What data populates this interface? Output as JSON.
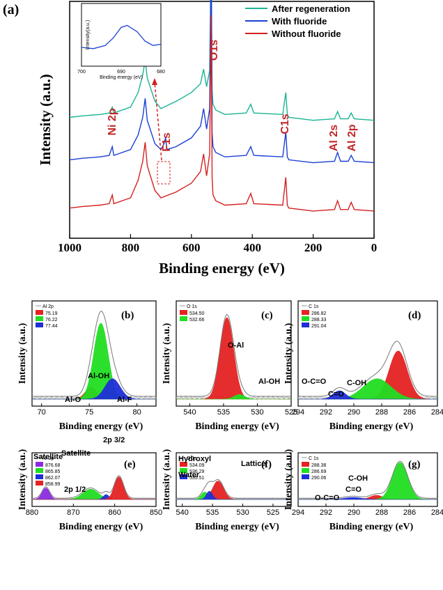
{
  "chart_data": [
    {
      "id": "a",
      "type": "line",
      "panel_label": "(a)",
      "xlabel": "Binding energy (eV)",
      "ylabel": "Intensity (a.u.)",
      "xlim": [
        1000,
        0
      ],
      "x_ticks": [
        1000,
        800,
        600,
        400,
        200,
        0
      ],
      "legend": [
        "After regeneration",
        "With fluoride",
        "Without fluoride"
      ],
      "series": [
        {
          "name": "After regeneration",
          "color": "#1ab394",
          "offset": 0.62,
          "x": [
            1000,
            960,
            900,
            870,
            860,
            855,
            800,
            775,
            760,
            752,
            745,
            720,
            700,
            650,
            600,
            570,
            560,
            550,
            540,
            535,
            532,
            529,
            520,
            490,
            420,
            405,
            395,
            300,
            290,
            285,
            280,
            200,
            130,
            120,
            110,
            85,
            75,
            65,
            0
          ],
          "y": [
            0.03,
            0.04,
            0.05,
            0.06,
            0.1,
            0.06,
            0.1,
            0.2,
            0.32,
            0.42,
            0.3,
            0.14,
            0.09,
            0.14,
            0.2,
            0.26,
            0.36,
            0.24,
            0.35,
            1.1,
            0.22,
            0.12,
            0.08,
            0.05,
            0.06,
            0.12,
            0.06,
            0.05,
            0.2,
            0.05,
            0.03,
            0.01,
            0.02,
            0.07,
            0.02,
            0.02,
            0.06,
            0.02,
            0.01
          ]
        },
        {
          "name": "With fluoride",
          "color": "#1a3fd6",
          "offset": 0.33,
          "x": [
            1000,
            960,
            900,
            870,
            860,
            855,
            800,
            775,
            760,
            752,
            745,
            720,
            700,
            690,
            685,
            680,
            650,
            600,
            570,
            560,
            550,
            540,
            535,
            532,
            529,
            520,
            490,
            420,
            405,
            395,
            300,
            290,
            285,
            280,
            200,
            130,
            120,
            110,
            85,
            75,
            65,
            0
          ],
          "y": [
            0.03,
            0.04,
            0.05,
            0.06,
            0.12,
            0.06,
            0.1,
            0.2,
            0.32,
            0.45,
            0.3,
            0.14,
            0.1,
            0.14,
            0.18,
            0.1,
            0.12,
            0.18,
            0.26,
            0.38,
            0.24,
            0.38,
            1.5,
            0.22,
            0.12,
            0.08,
            0.05,
            0.06,
            0.12,
            0.06,
            0.05,
            0.22,
            0.05,
            0.03,
            0.01,
            0.02,
            0.08,
            0.02,
            0.02,
            0.06,
            0.02,
            0.01
          ]
        },
        {
          "name": "Without fluoride",
          "color": "#d42020",
          "offset": 0.0,
          "x": [
            1000,
            960,
            900,
            870,
            860,
            855,
            800,
            775,
            760,
            752,
            745,
            720,
            700,
            650,
            600,
            570,
            560,
            550,
            540,
            535,
            532,
            529,
            520,
            490,
            420,
            405,
            395,
            300,
            290,
            285,
            280,
            200,
            130,
            120,
            110,
            85,
            75,
            65,
            0
          ],
          "y": [
            0.03,
            0.04,
            0.05,
            0.06,
            0.12,
            0.06,
            0.1,
            0.22,
            0.35,
            0.48,
            0.32,
            0.15,
            0.1,
            0.14,
            0.2,
            0.28,
            0.4,
            0.25,
            0.4,
            1.35,
            0.24,
            0.12,
            0.08,
            0.05,
            0.06,
            0.13,
            0.06,
            0.05,
            0.24,
            0.05,
            0.03,
            0.01,
            0.02,
            0.08,
            0.02,
            0.02,
            0.07,
            0.02,
            0.01
          ]
        }
      ],
      "peak_labels": [
        {
          "text": "Ni 2p",
          "x": 855,
          "color": "#c0282a"
        },
        {
          "text": "F1s",
          "x": 685,
          "color": "#c0282a"
        },
        {
          "text": "O1s",
          "x": 532,
          "color": "#c0282a"
        },
        {
          "text": "C1s",
          "x": 288,
          "color": "#c0282a"
        },
        {
          "text": "Al 2s",
          "x": 120,
          "color": "#c0282a"
        },
        {
          "text": "Al 2p",
          "x": 75,
          "color": "#c0282a"
        }
      ],
      "inset": {
        "xlim": [
          700,
          680
        ],
        "x_ticks": [
          700,
          690,
          680
        ],
        "xlabel": "Binding energy (eV)",
        "ylabel": "Intensity(a.u.)",
        "x": [
          700,
          697,
          694,
          692,
          690,
          688.5,
          686,
          684,
          682,
          680
        ],
        "y": [
          0.3,
          0.28,
          0.33,
          0.45,
          0.62,
          0.65,
          0.55,
          0.4,
          0.33,
          0.35
        ],
        "color": "#1a3fd6"
      }
    },
    {
      "id": "b",
      "type": "area",
      "panel_label": "(b)",
      "xlabel": "Binding energy (eV)",
      "ylabel": "Intensity (a.u.)",
      "xlim": [
        69,
        82
      ],
      "x_ticks": [
        70,
        75,
        80
      ],
      "legend_title": "Al 2p",
      "legend": [
        {
          "label": "75.19",
          "color": "#e52222"
        },
        {
          "label": "76.22",
          "color": "#22dd22"
        },
        {
          "label": "77.44",
          "color": "#1f2fd8"
        }
      ],
      "peaks": [
        {
          "name": "Al-O",
          "center": 75.19,
          "height": 0.13,
          "width": 0.6,
          "color": "#e52222"
        },
        {
          "name": "Al-OH",
          "center": 76.22,
          "height": 0.82,
          "width": 0.75,
          "color": "#22dd22"
        },
        {
          "name": "Al-F",
          "center": 77.44,
          "height": 0.22,
          "width": 0.8,
          "color": "#1f2fd8"
        }
      ],
      "annotations": [
        "Al-OH",
        "Al-O",
        "Al-F"
      ]
    },
    {
      "id": "c",
      "type": "area",
      "panel_label": "(c)",
      "xlabel": "Binding energy (eV)",
      "ylabel": "Intensity (a.u.)",
      "xlim": [
        542,
        525
      ],
      "x_ticks": [
        540,
        535,
        530,
        525
      ],
      "legend_title": "O 1s",
      "legend": [
        {
          "label": "534.50",
          "color": "#e52222"
        },
        {
          "label": "532.66",
          "color": "#22dd22"
        }
      ],
      "peaks": [
        {
          "name": "O-Al",
          "center": 534.5,
          "height": 0.88,
          "width": 1.0,
          "color": "#e52222"
        },
        {
          "name": "Al-OH",
          "center": 532.66,
          "height": 0.05,
          "width": 0.8,
          "color": "#22dd22"
        }
      ],
      "annotations": [
        "O-Al",
        "Al-OH"
      ]
    },
    {
      "id": "d",
      "type": "area",
      "panel_label": "(d)",
      "xlabel": "Binding energy (eV)",
      "ylabel": "Intensity (a.u.)",
      "xlim": [
        294,
        284
      ],
      "x_ticks": [
        294,
        292,
        290,
        288,
        286,
        284
      ],
      "legend_title": "C 1s",
      "legend": [
        {
          "label": "286.82",
          "color": "#e52222"
        },
        {
          "label": "288.33",
          "color": "#22dd22"
        },
        {
          "label": "291.04",
          "color": "#1f2fd8"
        }
      ],
      "peaks": [
        {
          "name": "C-OH",
          "center": 286.82,
          "height": 0.52,
          "width": 0.65,
          "color": "#e52222"
        },
        {
          "name": "C=O",
          "center": 288.33,
          "height": 0.22,
          "width": 1.0,
          "color": "#22dd22"
        },
        {
          "name": "O-C=O",
          "center": 291.04,
          "height": 0.09,
          "width": 0.45,
          "color": "#1f2fd8"
        }
      ],
      "annotations": [
        "C-OH",
        "C=O",
        "O-C=O"
      ]
    },
    {
      "id": "e",
      "type": "area",
      "panel_label": "(e)",
      "xlabel": "Binding energy (eV)",
      "ylabel": "Intensity (a.u.)",
      "xlim": [
        880,
        850
      ],
      "x_ticks": [
        880,
        870,
        860,
        850
      ],
      "legend_title": "Ni 2p",
      "legend": [
        {
          "label": "876.68",
          "color": "#8a2be2"
        },
        {
          "label": "865.85",
          "color": "#22dd22"
        },
        {
          "label": "862.07",
          "color": "#1f2fd8"
        },
        {
          "label": "858.99",
          "color": "#e52222"
        }
      ],
      "peaks": [
        {
          "name": "Satellite",
          "center": 876.68,
          "height": 0.28,
          "width": 0.9,
          "color": "#8a2be2"
        },
        {
          "name": "2p 1/2",
          "center": 865.85,
          "height": 0.25,
          "width": 1.9,
          "color": "#22dd22"
        },
        {
          "name": "Satellite",
          "center": 862.07,
          "height": 0.12,
          "width": 0.7,
          "color": "#1f2fd8"
        },
        {
          "name": "2p 3/2",
          "center": 858.99,
          "height": 0.55,
          "width": 1.1,
          "color": "#e52222"
        }
      ],
      "annotations": [
        "Satellite",
        "Satellite",
        "2p 1/2",
        "2p 3/2"
      ]
    },
    {
      "id": "f",
      "type": "area",
      "panel_label": "(f)",
      "xlabel": "Binding energy (eV)",
      "ylabel": "Intensity (a.u.)",
      "xlim": [
        541,
        522
      ],
      "x_ticks": [
        540,
        535,
        530,
        525
      ],
      "legend_title": "O 1s",
      "legend": [
        {
          "label": "534.09",
          "color": "#e52222"
        },
        {
          "label": "536.29",
          "color": "#22dd22"
        },
        {
          "label": "535.51",
          "color": "#1f2fd8"
        }
      ],
      "peaks": [
        {
          "name": "Lattice",
          "center": 534.09,
          "height": 0.45,
          "width": 0.9,
          "color": "#e52222"
        },
        {
          "name": "Water",
          "center": 536.29,
          "height": 0.18,
          "width": 0.6,
          "color": "#22dd22"
        },
        {
          "name": "Hydroxyl",
          "center": 535.51,
          "height": 0.2,
          "width": 0.5,
          "color": "#1f2fd8"
        }
      ],
      "annotations": [
        "Hydroxyl",
        "Water",
        "Lattice"
      ]
    },
    {
      "id": "g",
      "type": "area",
      "panel_label": "(g)",
      "xlabel": "Binding energy (eV)",
      "ylabel": "Intensity (a.u.)",
      "xlim": [
        294,
        284
      ],
      "x_ticks": [
        294,
        292,
        290,
        288,
        286,
        284
      ],
      "legend_title": "C 1s",
      "legend": [
        {
          "label": "288.38",
          "color": "#e52222"
        },
        {
          "label": "286.69",
          "color": "#22dd22"
        },
        {
          "label": "290.06",
          "color": "#1f2fd8"
        }
      ],
      "peaks": [
        {
          "name": "C=O",
          "center": 288.38,
          "height": 0.1,
          "width": 0.45,
          "color": "#e52222"
        },
        {
          "name": "C-OH",
          "center": 286.69,
          "height": 0.9,
          "width": 0.55,
          "color": "#22dd22"
        },
        {
          "name": "O-C=O",
          "center": 290.06,
          "height": 0.05,
          "width": 0.6,
          "color": "#1f2fd8"
        }
      ],
      "annotations": [
        "O-C=O",
        "C=O",
        "C-OH"
      ]
    }
  ]
}
